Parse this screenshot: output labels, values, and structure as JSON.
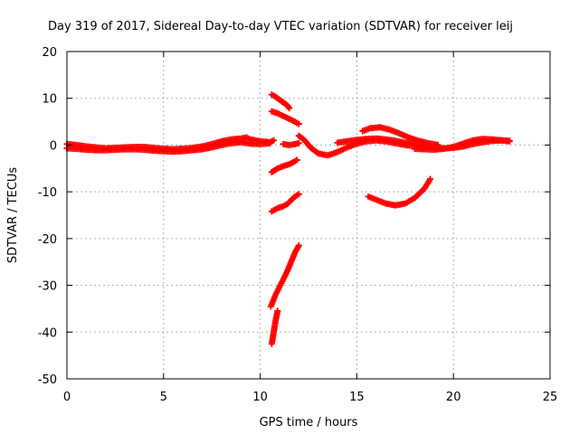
{
  "chart_data": {
    "type": "scatter",
    "title": "Day 319 of 2017, Sidereal Day-to-day VTEC variation (SDTVAR) for receiver leij",
    "xlabel": "GPS time / hours",
    "ylabel": "SDTVAR / TECUs",
    "xlim": [
      0,
      25
    ],
    "ylim": [
      -50,
      20
    ],
    "xticks": [
      0,
      5,
      10,
      15,
      20,
      25
    ],
    "yticks": [
      -50,
      -40,
      -30,
      -20,
      -10,
      0,
      10,
      20
    ],
    "xtick_labels": [
      "0",
      "5",
      "10",
      "15",
      "20",
      "25"
    ],
    "ytick_labels": [
      "-50",
      "-40",
      "-30",
      "-20",
      "-10",
      "0",
      "10",
      "20"
    ],
    "grid": true,
    "marker_color": "#ff0000",
    "series": [
      {
        "name": "main band",
        "points": [
          [
            0,
            0.2
          ],
          [
            0.5,
            0
          ],
          [
            1,
            -0.3
          ],
          [
            1.5,
            -0.5
          ],
          [
            2,
            -0.7
          ],
          [
            2.5,
            -0.6
          ],
          [
            3,
            -0.5
          ],
          [
            3.5,
            -0.4
          ],
          [
            4,
            -0.4
          ],
          [
            4.5,
            -0.6
          ],
          [
            5,
            -0.8
          ],
          [
            5.5,
            -0.9
          ],
          [
            6,
            -0.8
          ],
          [
            6.5,
            -0.6
          ],
          [
            7,
            -0.3
          ],
          [
            7.5,
            0.2
          ],
          [
            8,
            0.8
          ],
          [
            8.5,
            1.2
          ],
          [
            9,
            1.4
          ],
          [
            9.3,
            1.6
          ],
          [
            9.5,
            1.2
          ],
          [
            10,
            0.8
          ],
          [
            10.5,
            0.6
          ],
          [
            10.7,
            1
          ]
        ]
      },
      {
        "name": "main band 2",
        "points": [
          [
            0,
            -0.7
          ],
          [
            0.5,
            -0.8
          ],
          [
            1,
            -1
          ],
          [
            1.5,
            -1.1
          ],
          [
            2,
            -1.1
          ],
          [
            2.5,
            -1
          ],
          [
            3,
            -0.9
          ],
          [
            3.5,
            -0.9
          ],
          [
            4,
            -1
          ],
          [
            4.5,
            -1.2
          ],
          [
            5,
            -1.3
          ],
          [
            5.5,
            -1.4
          ],
          [
            6,
            -1.3
          ],
          [
            6.5,
            -1.1
          ],
          [
            7,
            -0.9
          ],
          [
            7.5,
            -0.5
          ],
          [
            8,
            0
          ],
          [
            8.5,
            0.4
          ],
          [
            9,
            0.6
          ],
          [
            9.5,
            0.3
          ],
          [
            10,
            0.2
          ],
          [
            10.5,
            0.4
          ]
        ]
      },
      {
        "name": "arc a",
        "points": [
          [
            10.6,
            10.8
          ],
          [
            10.8,
            10.3
          ],
          [
            11,
            9.7
          ],
          [
            11.2,
            9.1
          ],
          [
            11.4,
            8.5
          ],
          [
            11.5,
            7.9
          ]
        ]
      },
      {
        "name": "arc b",
        "points": [
          [
            10.6,
            7.2
          ],
          [
            10.9,
            6.8
          ],
          [
            11.2,
            6.2
          ],
          [
            11.5,
            5.6
          ],
          [
            11.8,
            5
          ],
          [
            12,
            4.5
          ]
        ]
      },
      {
        "name": "arc c",
        "points": [
          [
            11.2,
            0.2
          ],
          [
            11.5,
            0
          ],
          [
            11.8,
            0.2
          ],
          [
            12,
            0.4
          ]
        ]
      },
      {
        "name": "arc d",
        "points": [
          [
            10.6,
            -5.8
          ],
          [
            10.9,
            -5
          ],
          [
            11.2,
            -4.5
          ],
          [
            11.5,
            -4.1
          ],
          [
            11.7,
            -3.7
          ],
          [
            11.9,
            -3.2
          ]
        ]
      },
      {
        "name": "arc e",
        "points": [
          [
            10.6,
            -14.2
          ],
          [
            10.9,
            -13.5
          ],
          [
            11.2,
            -13.1
          ],
          [
            11.4,
            -12.6
          ],
          [
            11.6,
            -11.8
          ],
          [
            11.8,
            -11
          ],
          [
            12,
            -10.5
          ]
        ]
      },
      {
        "name": "arc f",
        "points": [
          [
            10.55,
            -34.5
          ],
          [
            10.8,
            -32
          ],
          [
            11.1,
            -29.5
          ],
          [
            11.4,
            -27
          ],
          [
            11.6,
            -25
          ],
          [
            11.8,
            -23
          ],
          [
            12,
            -21.5
          ]
        ]
      },
      {
        "name": "arc g",
        "points": [
          [
            10.6,
            -42.5
          ],
          [
            10.7,
            -40
          ],
          [
            10.8,
            -37.5
          ],
          [
            10.9,
            -35.5
          ]
        ]
      },
      {
        "name": "arc h",
        "points": [
          [
            12,
            2
          ],
          [
            12.3,
            1
          ],
          [
            12.6,
            -0.5
          ],
          [
            13,
            -1.8
          ],
          [
            13.5,
            -2.2
          ],
          [
            14,
            -1.5
          ],
          [
            14.5,
            -0.5
          ],
          [
            15,
            0.3
          ],
          [
            15.5,
            0.8
          ],
          [
            16,
            1
          ],
          [
            16.5,
            0.8
          ],
          [
            17,
            0.4
          ],
          [
            17.5,
            0
          ],
          [
            18,
            -0.2
          ],
          [
            18.5,
            -0.3
          ]
        ]
      },
      {
        "name": "arc i",
        "points": [
          [
            15.3,
            3
          ],
          [
            15.7,
            3.6
          ],
          [
            16.2,
            3.8
          ],
          [
            16.7,
            3.3
          ],
          [
            17.2,
            2.5
          ],
          [
            17.7,
            1.6
          ],
          [
            18.2,
            0.9
          ],
          [
            18.7,
            0.4
          ],
          [
            19.2,
            0
          ]
        ]
      },
      {
        "name": "arc j",
        "points": [
          [
            14,
            0.5
          ],
          [
            14.5,
            0.8
          ],
          [
            15,
            1.1
          ],
          [
            15.5,
            1.3
          ],
          [
            16,
            1.4
          ],
          [
            16.5,
            1.2
          ],
          [
            17,
            0.9
          ],
          [
            17.5,
            0.5
          ],
          [
            18,
            0.2
          ],
          [
            18.5,
            -0.3
          ],
          [
            19,
            -0.6
          ],
          [
            19.5,
            -0.7
          ],
          [
            20,
            -0.6
          ],
          [
            20.5,
            -0.3
          ],
          [
            21,
            0.2
          ],
          [
            21.5,
            0.6
          ],
          [
            22,
            0.9
          ],
          [
            22.5,
            1
          ],
          [
            22.9,
            0.9
          ]
        ]
      },
      {
        "name": "arc k",
        "points": [
          [
            18,
            -0.8
          ],
          [
            18.5,
            -0.9
          ],
          [
            19,
            -1
          ],
          [
            19.5,
            -0.8
          ],
          [
            20,
            -0.4
          ],
          [
            20.5,
            0.3
          ],
          [
            21,
            1
          ],
          [
            21.5,
            1.3
          ],
          [
            22,
            1.2
          ],
          [
            22.5,
            1
          ],
          [
            22.9,
            0.8
          ]
        ]
      },
      {
        "name": "arc l",
        "points": [
          [
            15.6,
            -11
          ],
          [
            16,
            -11.7
          ],
          [
            16.5,
            -12.5
          ],
          [
            17,
            -12.9
          ],
          [
            17.5,
            -12.5
          ],
          [
            18,
            -11.3
          ],
          [
            18.5,
            -9.3
          ],
          [
            18.8,
            -7.3
          ]
        ]
      }
    ]
  }
}
